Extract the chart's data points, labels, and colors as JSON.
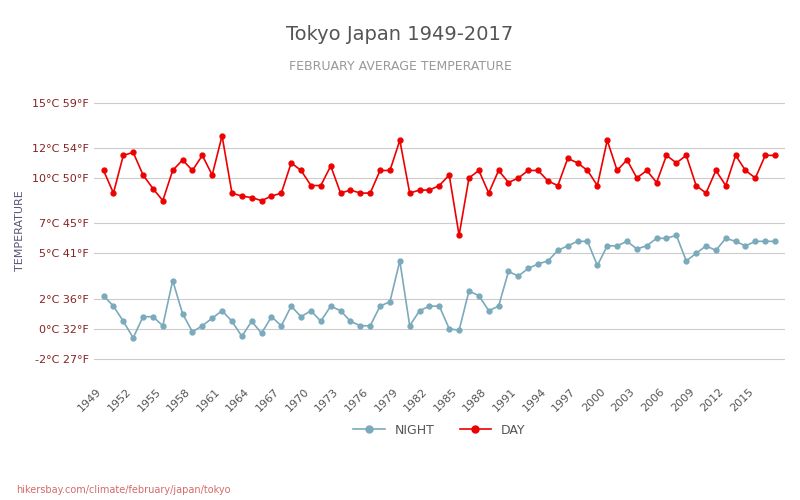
{
  "title": "Tokyo Japan 1949-2017",
  "subtitle": "FEBRUARY AVERAGE TEMPERATURE",
  "xlabel": "",
  "ylabel": "TEMPERATURE",
  "title_color": "#555555",
  "subtitle_color": "#888888",
  "ylabel_color": "#555577",
  "background_color": "#ffffff",
  "grid_color": "#cccccc",
  "watermark": "hikersbay.com/climate/february/japan/tokyo",
  "years": [
    1949,
    1950,
    1951,
    1952,
    1953,
    1954,
    1955,
    1956,
    1957,
    1958,
    1959,
    1960,
    1961,
    1962,
    1963,
    1964,
    1965,
    1966,
    1967,
    1968,
    1969,
    1970,
    1971,
    1972,
    1973,
    1974,
    1975,
    1976,
    1977,
    1978,
    1979,
    1980,
    1981,
    1982,
    1983,
    1984,
    1985,
    1986,
    1987,
    1988,
    1989,
    1990,
    1991,
    1992,
    1993,
    1994,
    1995,
    1996,
    1997,
    1998,
    1999,
    2000,
    2001,
    2002,
    2003,
    2004,
    2005,
    2006,
    2007,
    2008,
    2009,
    2010,
    2011,
    2012,
    2013,
    2014,
    2015,
    2016,
    2017
  ],
  "day_temps": [
    10.5,
    9.0,
    11.5,
    11.7,
    10.2,
    9.3,
    8.5,
    10.5,
    11.2,
    10.5,
    11.5,
    10.2,
    12.8,
    9.0,
    8.8,
    8.7,
    8.5,
    8.8,
    9.0,
    11.0,
    10.5,
    9.5,
    9.5,
    10.8,
    9.0,
    9.2,
    9.0,
    9.0,
    10.5,
    10.5,
    12.5,
    9.0,
    9.2,
    9.2,
    9.5,
    10.2,
    6.2,
    10.0,
    10.5,
    9.0,
    10.5,
    9.7,
    10.0,
    10.5,
    10.5,
    9.8,
    9.5,
    11.3,
    11.0,
    10.5,
    9.5,
    12.5,
    10.5,
    11.2,
    10.0,
    10.5,
    9.7,
    11.5,
    11.0,
    11.5,
    9.5,
    9.0,
    10.5,
    9.5,
    11.5,
    10.5,
    10.0,
    11.5,
    11.5
  ],
  "night_temps": [
    2.2,
    1.5,
    0.5,
    -0.6,
    0.8,
    0.8,
    0.2,
    3.2,
    1.0,
    -0.2,
    0.2,
    0.7,
    1.2,
    0.5,
    -0.5,
    0.5,
    -0.3,
    0.8,
    0.2,
    1.5,
    0.8,
    1.2,
    0.5,
    1.5,
    1.2,
    0.5,
    0.2,
    0.2,
    1.5,
    1.8,
    4.5,
    0.2,
    1.2,
    1.5,
    1.5,
    0.0,
    -0.1,
    2.5,
    2.2,
    1.2,
    1.5,
    3.8,
    3.5,
    4.0,
    4.3,
    4.5,
    5.2,
    5.5,
    5.8,
    5.8,
    4.2,
    5.5,
    5.5,
    5.8,
    5.3,
    5.5,
    6.0,
    6.0,
    6.2,
    4.5,
    5.0,
    5.5,
    5.2,
    6.0,
    5.8,
    5.5,
    5.8,
    5.8,
    5.8
  ],
  "day_color": "#ee0000",
  "night_color": "#7aaabb",
  "yticks_celsius": [
    -2,
    0,
    2,
    5,
    7,
    10,
    12,
    15
  ],
  "yticks_fahrenheit": [
    27,
    32,
    36,
    41,
    45,
    50,
    54,
    59
  ],
  "ylim": [
    -3.5,
    16.5
  ],
  "legend_night": "NIGHT",
  "legend_day": "DAY"
}
